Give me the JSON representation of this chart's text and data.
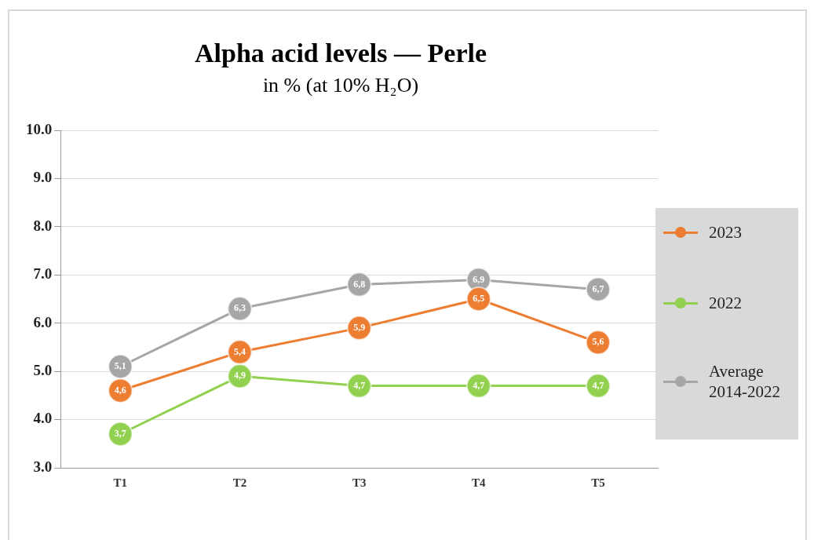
{
  "chart_data": {
    "type": "line",
    "title": "Alpha acid levels — Perle",
    "subtitle": "in % (at 10% H₂O)",
    "categories": [
      "T1",
      "T2",
      "T3",
      "T4",
      "T5"
    ],
    "ylim": [
      3,
      10
    ],
    "yticks": [
      {
        "value": 3,
        "label": "3.0"
      },
      {
        "value": 4,
        "label": "4.0"
      },
      {
        "value": 5,
        "label": "5.0"
      },
      {
        "value": 6,
        "label": "6.0"
      },
      {
        "value": 7,
        "label": "7.0"
      },
      {
        "value": 8,
        "label": "8.0"
      },
      {
        "value": 9,
        "label": "9.0"
      },
      {
        "value": 10,
        "label": "10.0"
      }
    ],
    "grid": "y",
    "legend": "right",
    "marker": "circle",
    "line_style": "solid",
    "series": [
      {
        "name": "2023",
        "color": "#ed7d31",
        "values": [
          4.6,
          5.4,
          5.9,
          6.5,
          5.6
        ],
        "value_labels": [
          "4,6",
          "5,4",
          "5,9",
          "6,5",
          "5,6"
        ]
      },
      {
        "name": "2022",
        "color": "#92d050",
        "values": [
          3.7,
          4.9,
          4.7,
          4.7,
          4.7
        ],
        "value_labels": [
          "3,7",
          "4,9",
          "4,7",
          "4,7",
          "4,7"
        ]
      },
      {
        "name": "Average 2014-2022",
        "color": "#a6a6a6",
        "values": [
          5.1,
          6.3,
          6.8,
          6.9,
          6.7
        ],
        "value_labels": [
          "5,1",
          "6,3",
          "6,8",
          "6,9",
          "6,7"
        ]
      }
    ]
  }
}
